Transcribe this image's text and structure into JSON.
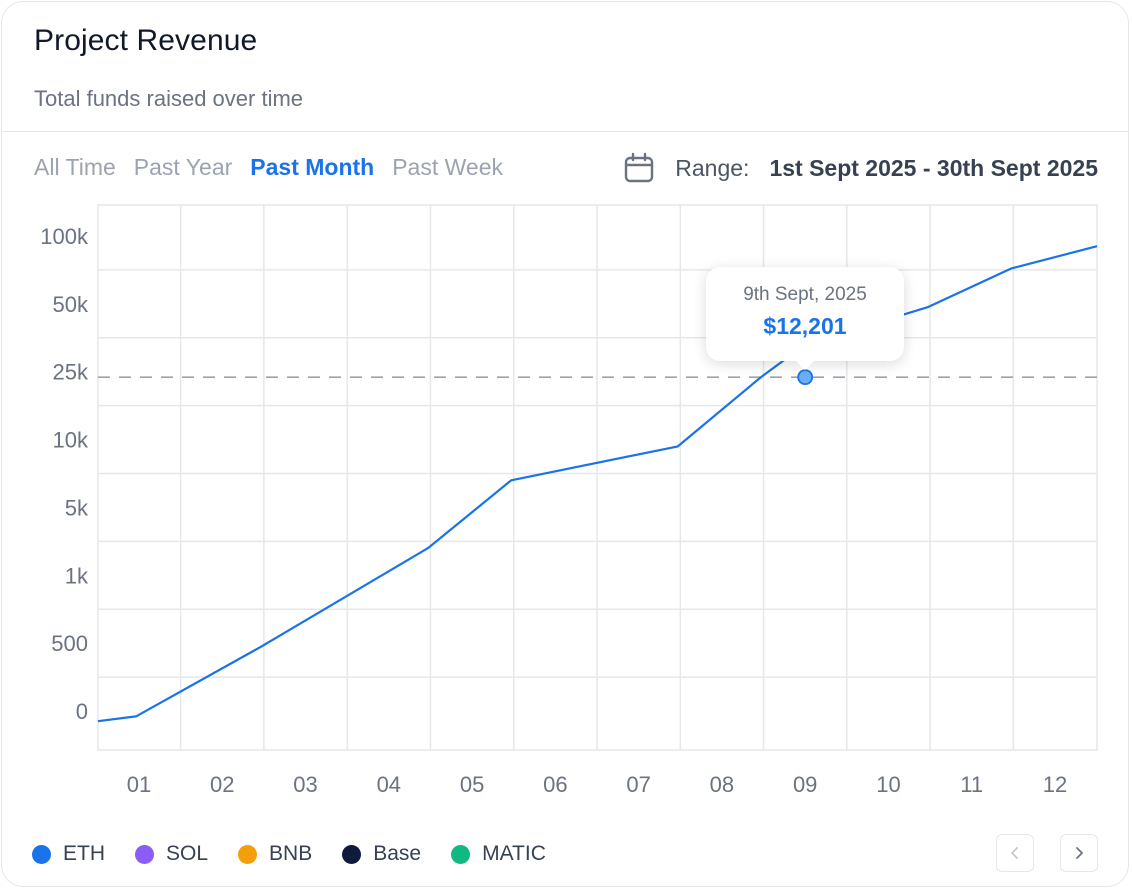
{
  "header": {
    "title": "Project Revenue",
    "subtitle": "Total funds raised over time"
  },
  "filters": {
    "tabs": [
      {
        "label": "All Time",
        "active": false
      },
      {
        "label": "Past Year",
        "active": false
      },
      {
        "label": "Past Month",
        "active": true
      },
      {
        "label": "Past Week",
        "active": false
      }
    ],
    "range_label": "Range:",
    "range_value": "1st Sept 2025 - 30th Sept 2025",
    "range_icon": "calendar-icon"
  },
  "tooltip": {
    "date": "9th Sept, 2025",
    "value": "$12,201"
  },
  "legend": [
    {
      "label": "ETH",
      "color": "#1a73e8"
    },
    {
      "label": "SOL",
      "color": "#8b5cf6"
    },
    {
      "label": "BNB",
      "color": "#f59e0b"
    },
    {
      "label": "Base",
      "color": "#0f1b3d"
    },
    {
      "label": "MATIC",
      "color": "#10b981"
    }
  ],
  "pagination": {
    "prev_icon": "chevron-left-icon",
    "next_icon": "chevron-right-icon"
  },
  "colors": {
    "line": "#1a73e8",
    "point": "#6aaef5",
    "accent": "#1a73e8"
  },
  "chart_data": {
    "type": "line",
    "x": [
      "01",
      "02",
      "03",
      "04",
      "05",
      "06",
      "07",
      "08",
      "09",
      "10",
      "11",
      "12"
    ],
    "y_tick_labels": [
      "0",
      "500",
      "1k",
      "5k",
      "10k",
      "25k",
      "50k",
      "100k"
    ],
    "y_scale": "categorical-nonlinear",
    "grid": true,
    "legend_position": "bottom-left",
    "series": [
      {
        "name": "ETH",
        "points": [
          {
            "x": "01",
            "y": -0.15
          },
          {
            "x": "01",
            "y": -0.08
          },
          {
            "x": "02",
            "y": 0.95
          },
          {
            "x": "04",
            "y": 2.4
          },
          {
            "x": "05",
            "y": 3.4
          },
          {
            "x": "07",
            "y": 3.9
          },
          {
            "x": "08",
            "y": 4.92
          },
          {
            "x": "09",
            "y": 5.4
          },
          {
            "x": "10",
            "y": 5.95
          },
          {
            "x": "11",
            "y": 6.52
          },
          {
            "x": "12",
            "y": 6.85
          }
        ]
      }
    ],
    "reference_line": {
      "y": 4.92,
      "style": "dashed"
    },
    "highlight": {
      "x": "09",
      "y_value": 12201
    }
  }
}
